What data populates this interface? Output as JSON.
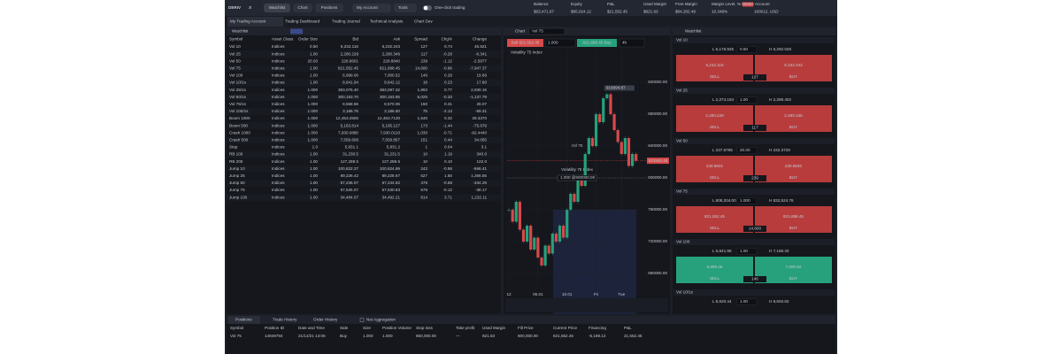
{
  "header": {
    "brand": "DERIV",
    "brand_mark": "X",
    "nav": [
      "Watchlist",
      "Chart",
      "Positions"
    ],
    "menus": [
      "My Account",
      "Tools"
    ],
    "toggle": "One-click trading",
    "stats": [
      {
        "label": "Balance",
        "value": "$63,471.67"
      },
      {
        "label": "Equity",
        "value": "$85,024.12"
      },
      {
        "label": "P&L",
        "value": "$21,552.45"
      },
      {
        "label": "Used Margin",
        "value": "$821.63"
      },
      {
        "label": "Free Margin",
        "value": "$84,202.49"
      },
      {
        "label": "Margin Level, %",
        "value": "10,348%"
      }
    ],
    "account_badge": "DEMO",
    "account_label": "Account",
    "account_value": "100012, USD"
  },
  "tabs": [
    "My Trading Account",
    "Trading Dashboard",
    "Trading Journal",
    "Technical Analysis",
    "Chart Dev"
  ],
  "watchlist": {
    "title": "Watchlist",
    "columns": [
      "Symbol",
      "Asset Class",
      "Order Size",
      "Bid",
      "Ask",
      "Spread",
      "Chg%",
      "Change"
    ],
    "rows": [
      [
        "Vol 10",
        "Indices",
        "0.50",
        "6,232.116",
        "6,232.243",
        "127",
        "0.74",
        "45.521"
      ],
      [
        "Vol 25",
        "Indices",
        "1.00",
        "2,280.229",
        "2,280.346",
        "117",
        "-0.28",
        "-6.341"
      ],
      [
        "Vol 50",
        "Indices",
        "20.00",
        "228.8601",
        "228.8840",
        "239",
        "-1.12",
        "-2.5877"
      ],
      [
        "Vol 75",
        "Indices",
        "1.00",
        "821,552.45",
        "821,698.45",
        "14,600",
        "-0.96",
        "-7,947.37"
      ],
      [
        "Vol 100",
        "Indices",
        "1.00",
        "6,999.06",
        "7,000.52",
        "146",
        "0.28",
        "19.66"
      ],
      [
        "Vol 10/1s",
        "Indices",
        "1.00",
        "8,641.94",
        "8,642.12",
        "18",
        "0.23",
        "17.80"
      ],
      [
        "Vol 25/1s",
        "Indices",
        "1.000",
        "383,075.40",
        "383,097.32",
        "1,892",
        "0.77",
        "2,930.16"
      ],
      [
        "Vol 50/1s",
        "Indices",
        "1.000",
        "300,153.70",
        "300,153.95",
        "5,025",
        "-0.33",
        "-1,137.79"
      ],
      [
        "Vol 75/1s",
        "Indices",
        "1.000",
        "8,568.56",
        "8,570.06",
        "150",
        "0.31",
        "26.07"
      ],
      [
        "Vol 100/1s",
        "Indices",
        "1.000",
        "3,186.75",
        "3,186.50",
        "75",
        "-2.13",
        "-69.31"
      ],
      [
        "Boom 1000",
        "Indices",
        "1.000",
        "12,453.2500",
        "12,453.7130",
        "1,540",
        "0.32",
        "39.3370"
      ],
      [
        "Boom 500",
        "Indices",
        "1.000",
        "5,163.814",
        "5,165.127",
        "173",
        "-1.44",
        "-75.679"
      ],
      [
        "Crash 1000",
        "Indices",
        "1.000",
        "7,930.0880",
        "7,930.0110",
        "1,030",
        "-0.71",
        "-92.4440"
      ],
      [
        "Crash 500",
        "Indices",
        "1.000",
        "7,559.606",
        "7,559.857",
        "151",
        "0.44",
        "34.055"
      ],
      [
        "Step",
        "Indices",
        "1.0",
        "5,831.1",
        "5,831.2",
        "1",
        "0.04",
        "3.1"
      ],
      [
        "RB 100",
        "Indices",
        "1.00",
        "31,230.5",
        "31,231.5",
        "10",
        "1.19",
        "340.0"
      ],
      [
        "RB 200",
        "Indices",
        "1.00",
        "127,288.5",
        "127,289.5",
        "10",
        "0.10",
        "122.0"
      ],
      [
        "Jump 10",
        "Indices",
        "1.00",
        "100,622.27",
        "100,624.69",
        "242",
        "-0.56",
        "-566.41"
      ],
      [
        "Jump 25",
        "Indices",
        "1.00",
        "89,226.42",
        "89,228.67",
        "527",
        "1.50",
        "1,266.56"
      ],
      [
        "Jump 50",
        "Indices",
        "1.00",
        "57,236.07",
        "57,244.82",
        "475",
        "-0.58",
        "-334.29"
      ],
      [
        "Jump 75",
        "Indices",
        "1.00",
        "57,525.07",
        "57,530.83",
        "576",
        "-0.12",
        "-38.17"
      ],
      [
        "Jump 100",
        "Indices",
        "1.00",
        "34,484.07",
        "34,492.21",
        "814",
        "3.71",
        "1,232.11"
      ]
    ]
  },
  "chart_panel": {
    "title": "Chart",
    "symbol": "Vol 75",
    "sell": "Sell 821,552.45",
    "size": "1.000",
    "buy": "821,698.45 Buy",
    "interval": "4h"
  },
  "chart_data": {
    "type": "candlestick",
    "title": "Volatility 75 Index",
    "watermark": "Vol 75",
    "watermark_sub": "Volatility 75 Index",
    "high_label": "919994.87",
    "x": [
      0,
      1,
      2,
      3,
      4,
      5,
      6,
      7,
      8,
      9,
      10,
      11,
      12,
      13,
      14,
      15,
      16,
      17,
      18,
      19,
      20,
      21,
      22,
      23,
      24,
      25,
      26,
      27,
      28,
      29,
      30,
      31,
      32,
      33,
      34,
      35
    ],
    "values": [
      760000,
      745000,
      770000,
      735000,
      720000,
      740000,
      710000,
      725000,
      700000,
      690000,
      715000,
      705000,
      730000,
      720000,
      740000,
      725000,
      760000,
      780000,
      770000,
      800000,
      790000,
      830000,
      850000,
      840000,
      880000,
      870000,
      900000,
      905000,
      880000,
      860000,
      845000,
      830000,
      850000,
      815000,
      830000,
      821552.45
    ],
    "xlim": [
      -0.5,
      38
    ],
    "xticks": [
      {
        "value": 0,
        "label": "12"
      },
      {
        "value": 8,
        "label": "05.01"
      },
      {
        "value": 16,
        "label": "10.01"
      },
      {
        "value": 24,
        "label": "Fri"
      },
      {
        "value": 31,
        "label": "Tue"
      }
    ],
    "ylim": [
      660000,
      960000
    ],
    "yticks": [
      {
        "value": 920000,
        "label": "920000.00"
      },
      {
        "value": 880000,
        "label": "880000.00"
      },
      {
        "value": 840000,
        "label": "840000.00"
      },
      {
        "value": 800000,
        "label": "800000.00"
      },
      {
        "value": 760000,
        "label": "760000.00"
      },
      {
        "value": 720000,
        "label": "720000.00"
      },
      {
        "value": 680000,
        "label": "680000.00"
      }
    ],
    "current": {
      "value": 821552.45,
      "label": "821552.45"
    },
    "order": {
      "value": 800000,
      "label": "1.000 @800000.00"
    },
    "up_color": "#26a17b",
    "down_color": "#d64a4a"
  },
  "cards": {
    "title": "Watchlist",
    "sell_label": "SELL",
    "buy_label": "BUY",
    "items": [
      {
        "symbol": "Vol 10",
        "low": "L 6,176.925",
        "size": "0.50",
        "high": "H 6,292.026",
        "sell": "6,232.116",
        "buy": "6,232.243",
        "spread": "127",
        "up": false
      },
      {
        "symbol": "Vol 25",
        "low": "L 2,274.184",
        "size": "1.00",
        "high": "H 2,289.402",
        "sell": "2,280.229",
        "buy": "2,280.346",
        "spread": "117",
        "up": false
      },
      {
        "symbol": "Vol 50",
        "low": "L 227.6765",
        "size": "20.00",
        "high": "H 232.3729",
        "sell": "228.8601",
        "buy": "228.8840",
        "spread": "239",
        "up": false
      },
      {
        "symbol": "Vol 75",
        "low": "L 808,204.00",
        "size": "1.000",
        "high": "H 832,524.76",
        "sell": "821,552.45",
        "buy": "821,698.45",
        "spread": "14,600",
        "up": false
      },
      {
        "symbol": "Vol 100",
        "low": "L 6,841.98",
        "size": "1.00",
        "high": "H 7,168.33",
        "sell": "6,999.06",
        "buy": "7,000.52",
        "spread": "146",
        "up": true
      },
      {
        "symbol": "Vol 10/1s",
        "low": "L 8,620.44",
        "size": "1.00",
        "high": "H 8,603.62"
      }
    ]
  },
  "positions": {
    "tabs": [
      "Positions",
      "Trade History",
      "Order History"
    ],
    "aggregation": "Net Aggregation",
    "columns": [
      "Symbol",
      "Position ID",
      "Date and Time",
      "Side",
      "Size",
      "Position Volume",
      "Stop loss",
      "Take profit",
      "Used Margin",
      "Fill Price",
      "Current Price",
      "Financing",
      "P&L"
    ],
    "rows": [
      [
        "Vol 75",
        "14849784",
        "21/12/21 14:06",
        "Buy",
        "1.000",
        "1.000",
        "850,000.00",
        "—",
        "821.63",
        "800,000.00",
        "821,552.45",
        "-5,198.12",
        "21,552.45"
      ]
    ]
  }
}
